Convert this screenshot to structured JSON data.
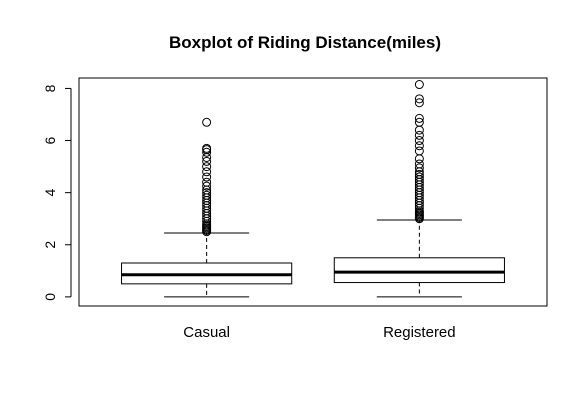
{
  "chart_data": {
    "type": "boxplot",
    "title": "Boxplot of Riding Distance(miles)",
    "xlabel": "",
    "ylabel": "",
    "ylim": [
      -0.35,
      8.4
    ],
    "yticks": [
      0,
      2,
      4,
      6,
      8
    ],
    "grid": false,
    "categories": [
      "Casual",
      "Registered"
    ],
    "boxes": [
      {
        "category": "Casual",
        "whisker_low": 0.0,
        "q1": 0.5,
        "median": 0.85,
        "q3": 1.3,
        "whisker_high": 2.45,
        "outliers": [
          2.5,
          2.55,
          2.6,
          2.65,
          2.7,
          2.75,
          2.8,
          2.9,
          3.0,
          3.1,
          3.2,
          3.3,
          3.4,
          3.5,
          3.6,
          3.7,
          3.8,
          3.9,
          4.0,
          4.1,
          4.25,
          4.4,
          4.6,
          4.8,
          5.0,
          5.2,
          5.35,
          5.55,
          5.65,
          5.7,
          6.7
        ]
      },
      {
        "category": "Registered",
        "whisker_low": 0.0,
        "q1": 0.55,
        "median": 0.95,
        "q3": 1.5,
        "whisker_high": 2.95,
        "outliers": [
          3.0,
          3.05,
          3.1,
          3.15,
          3.2,
          3.25,
          3.3,
          3.4,
          3.5,
          3.6,
          3.7,
          3.8,
          3.9,
          4.0,
          4.1,
          4.2,
          4.3,
          4.4,
          4.5,
          4.6,
          4.7,
          4.8,
          4.95,
          5.1,
          5.3,
          5.6,
          5.8,
          6.0,
          6.2,
          6.4,
          6.7,
          6.85,
          7.45,
          7.6,
          8.15
        ]
      }
    ]
  }
}
